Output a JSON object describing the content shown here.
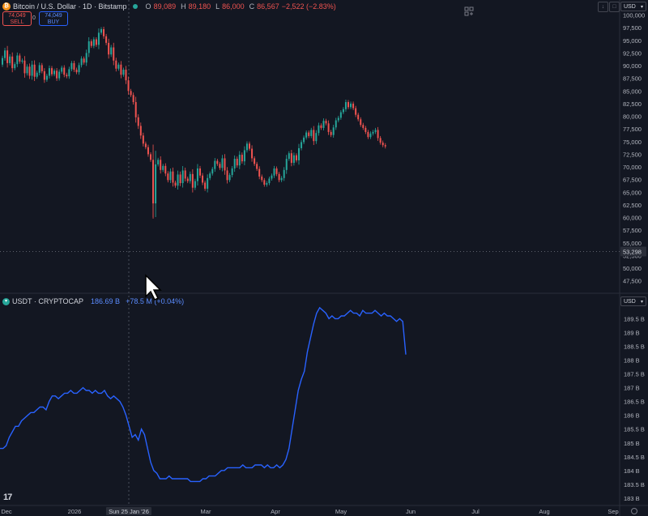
{
  "header": {
    "symbol_title": "Bitcoin / U.S. Dollar · 1D · Bitstamp",
    "ohlc": [
      {
        "label": "O",
        "value": "89,089"
      },
      {
        "label": "H",
        "value": "89,180"
      },
      {
        "label": "L",
        "value": "86,000"
      },
      {
        "label": "C",
        "value": "86,567"
      }
    ],
    "change": "−2,522 (−2.83%)",
    "sell_price": "74,049",
    "sell_label": "SELL",
    "spread": "0",
    "buy_price": "74,049",
    "buy_label": "BUY"
  },
  "indicator": {
    "title": "USDT · CRYPTOCAP",
    "value": "186.69 B",
    "change": "+78.5 M (+0.04%)"
  },
  "currency_top": "USD",
  "currency_bottom": "USD",
  "colors": {
    "background": "#131722",
    "up": "#26a69a",
    "down": "#ef5350",
    "line": "#2962ff",
    "text": "#b2b5be"
  },
  "icons": [
    "bitcoin-icon",
    "layout-icon",
    "arrow-down-icon",
    "square-icon",
    "usdt-icon",
    "mouse-cursor-icon",
    "settings-icon",
    "tradingview-logo"
  ],
  "chart_data": [
    {
      "type": "candlestick",
      "title": "Bitcoin / U.S. Dollar · 1D · Bitstamp",
      "y_ticks": [
        "100,000",
        "97,500",
        "95,000",
        "92,500",
        "90,000",
        "87,500",
        "85,000",
        "82,500",
        "80,000",
        "77,500",
        "75,000",
        "72,500",
        "70,000",
        "67,500",
        "65,000",
        "62,500",
        "60,000",
        "57,500",
        "55,000",
        "52,500",
        "50,000",
        "47,500"
      ],
      "ylim": [
        46500,
        101200
      ],
      "price_line": {
        "value": 53298,
        "label": "53,298"
      },
      "last_price": 74049,
      "x_ticks": [
        "Dec",
        "2026",
        "Sun 25 Jan '26",
        "Mar",
        "Apr",
        "May",
        "Jun",
        "Jul",
        "Aug",
        "Sep"
      ],
      "close": [
        91500,
        93000,
        90500,
        91800,
        89500,
        90300,
        92000,
        90800,
        91000,
        88500,
        89800,
        88000,
        90200,
        87800,
        88600,
        90100,
        88900,
        87200,
        88000,
        89500,
        88300,
        89000,
        87500,
        88800,
        89600,
        88200,
        87900,
        89300,
        90500,
        89200,
        88700,
        90100,
        91400,
        90600,
        92500,
        94800,
        93900,
        95200,
        94100,
        96500,
        97200,
        95800,
        94500,
        92200,
        93600,
        91000,
        89400,
        90200,
        88200,
        89200,
        87100,
        85000,
        84200,
        82800,
        79800,
        78100,
        76200,
        74600,
        73900,
        72500,
        71400,
        62800,
        70500,
        71400,
        69400,
        70200,
        68700,
        67400,
        69100,
        66900,
        66300,
        68500,
        66800,
        69300,
        67700,
        67200,
        68600,
        65900,
        67200,
        69700,
        68300,
        66900,
        65700,
        67800,
        68700,
        69600,
        71200,
        70600,
        69800,
        71700,
        69300,
        67400,
        68400,
        69700,
        71600,
        70300,
        72400,
        71100,
        73300,
        74600,
        73600,
        71700,
        70600,
        69600,
        68100,
        67400,
        66500,
        66800,
        67700,
        68300,
        69700,
        68600,
        67400,
        67800,
        69400,
        71600,
        72700,
        70800,
        72300,
        71300,
        73700,
        74900,
        75800,
        76800,
        76100,
        77300,
        75100,
        76700,
        78200,
        77700,
        79100,
        78600,
        76900,
        76300,
        77800,
        79200,
        79700,
        80800,
        81400,
        82800,
        81800,
        82500,
        81600,
        80300,
        79400,
        78300,
        77700,
        76900,
        75900,
        76600,
        76900,
        77300,
        75700,
        74800,
        74300,
        74049
      ],
      "open_first": 90200
    },
    {
      "type": "line",
      "title": "USDT · CRYPTOCAP",
      "y_ticks": [
        "189.5 B",
        "189 B",
        "188.5 B",
        "188 B",
        "187.5 B",
        "187 B",
        "186.5 B",
        "186 B",
        "185.5 B",
        "185 B",
        "184.5 B",
        "184 B",
        "183.5 B",
        "183 B"
      ],
      "ylim": [
        182.85,
        190.1
      ],
      "values": [
        184.8,
        184.8,
        184.9,
        185.2,
        185.4,
        185.6,
        185.6,
        185.8,
        185.9,
        186.0,
        186.1,
        186.1,
        186.2,
        186.3,
        186.3,
        186.2,
        186.5,
        186.7,
        186.7,
        186.6,
        186.7,
        186.8,
        186.8,
        186.9,
        186.8,
        186.8,
        186.9,
        187.0,
        186.9,
        186.9,
        186.8,
        186.9,
        186.8,
        186.8,
        186.9,
        186.7,
        186.6,
        186.7,
        186.6,
        186.5,
        186.3,
        186.0,
        185.6,
        185.2,
        185.3,
        185.1,
        185.5,
        185.3,
        184.8,
        184.3,
        184.0,
        183.9,
        183.7,
        183.7,
        183.7,
        183.8,
        183.7,
        183.7,
        183.7,
        183.7,
        183.7,
        183.7,
        183.6,
        183.6,
        183.6,
        183.6,
        183.7,
        183.7,
        183.8,
        183.8,
        183.8,
        183.9,
        184.0,
        184.0,
        184.1,
        184.1,
        184.1,
        184.1,
        184.1,
        184.2,
        184.1,
        184.1,
        184.1,
        184.2,
        184.2,
        184.2,
        184.1,
        184.2,
        184.1,
        184.1,
        184.2,
        184.1,
        184.2,
        184.4,
        184.8,
        185.5,
        186.2,
        186.9,
        187.3,
        187.6,
        188.3,
        188.8,
        189.3,
        189.7,
        189.9,
        189.8,
        189.7,
        189.5,
        189.6,
        189.5,
        189.5,
        189.6,
        189.6,
        189.7,
        189.8,
        189.7,
        189.7,
        189.6,
        189.8,
        189.7,
        189.7,
        189.7,
        189.8,
        189.7,
        189.6,
        189.7,
        189.6,
        189.6,
        189.5,
        189.4,
        189.5,
        189.4,
        188.2
      ],
      "x_ticks": [
        "Dec",
        "2026",
        "Sun 25 Jan '26",
        "Mar",
        "Apr",
        "May",
        "Jun",
        "Jul",
        "Aug",
        "Sep"
      ]
    }
  ]
}
